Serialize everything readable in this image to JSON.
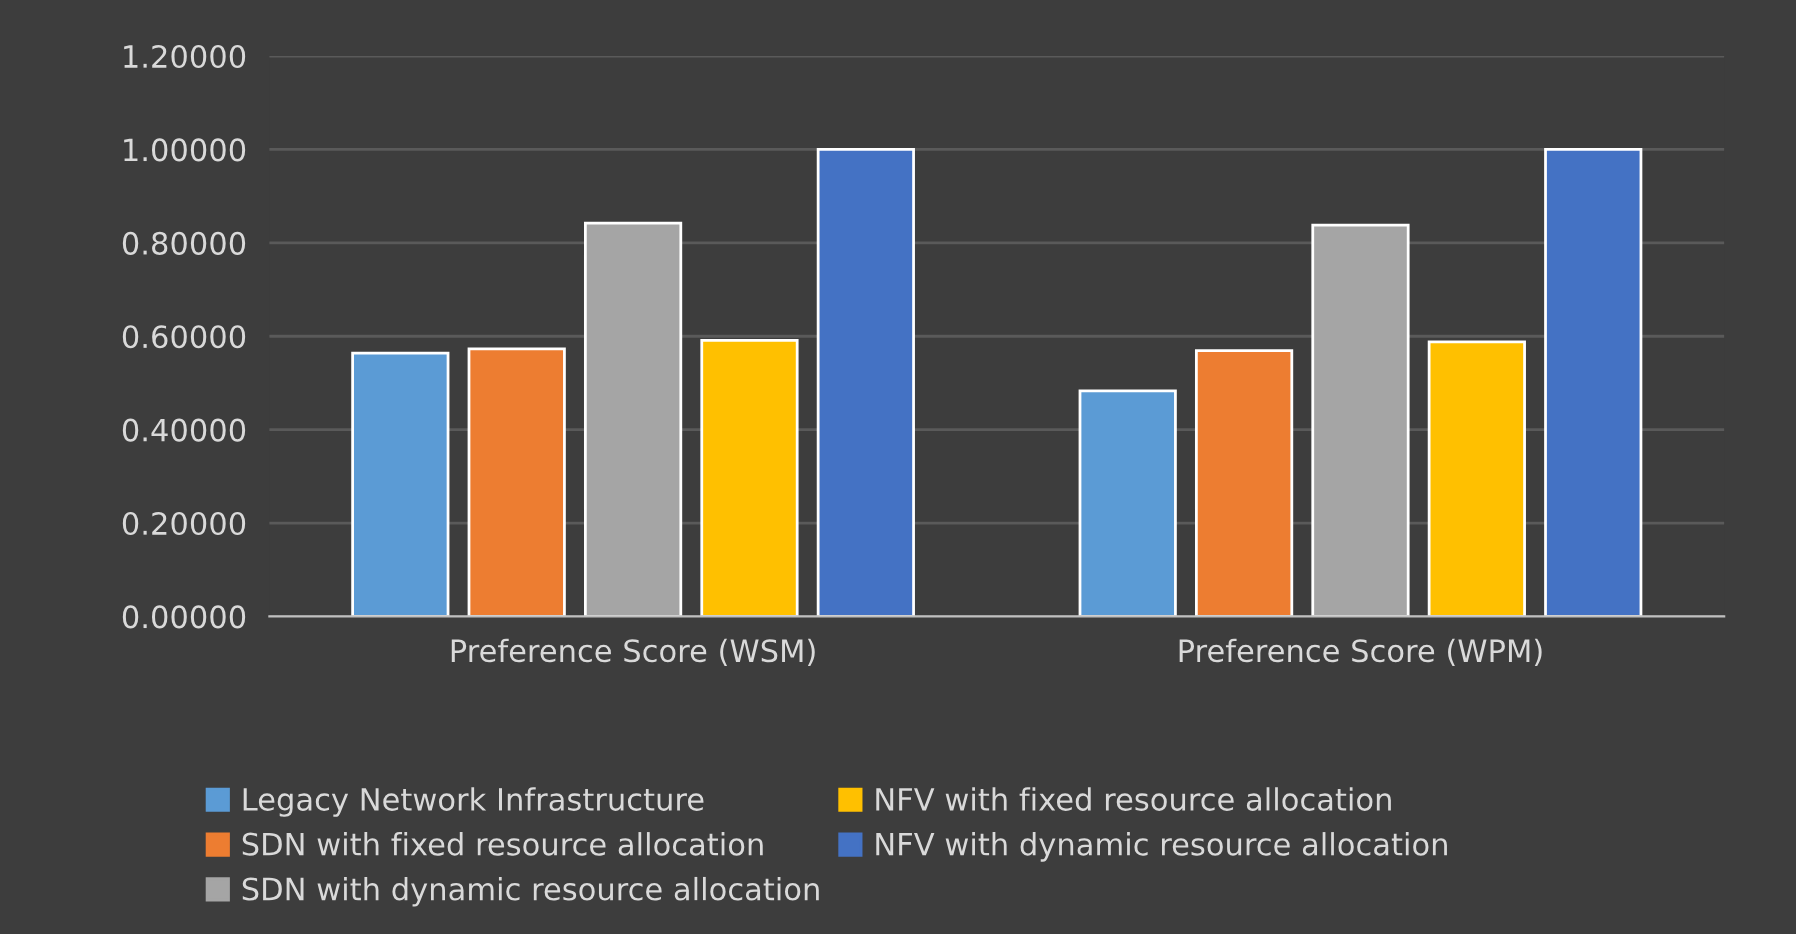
{
  "chart_data": {
    "type": "bar",
    "categories": [
      "Preference Score (WSM)",
      "Preference Score (WPM)"
    ],
    "series": [
      {
        "name": "Legacy Network Infrastructure",
        "color": "#5b9bd5",
        "values": [
          0.564,
          0.483
        ]
      },
      {
        "name": "SDN with fixed resource allocation",
        "color": "#ed7d31",
        "values": [
          0.573,
          0.569
        ]
      },
      {
        "name": "SDN with dynamic resource allocation",
        "color": "#a5a5a5",
        "values": [
          0.842,
          0.838
        ]
      },
      {
        "name": "NFV with fixed resource allocation",
        "color": "#ffc000",
        "values": [
          0.591,
          0.588
        ]
      },
      {
        "name": "NFV with dynamic resource allocation",
        "color": "#4472c4",
        "values": [
          1.0,
          1.0
        ]
      }
    ],
    "ylim": [
      0,
      1.2
    ],
    "yticks": [
      {
        "value": 0,
        "label": "0.00000"
      },
      {
        "value": 0.2,
        "label": "0.20000"
      },
      {
        "value": 0.4,
        "label": "0.40000"
      },
      {
        "value": 0.6,
        "label": "0.60000"
      },
      {
        "value": 0.8,
        "label": "0.80000"
      },
      {
        "value": 1.0,
        "label": "1.00000"
      },
      {
        "value": 1.2,
        "label": "1.20000"
      }
    ],
    "grid": "y",
    "legend": "bottom"
  }
}
